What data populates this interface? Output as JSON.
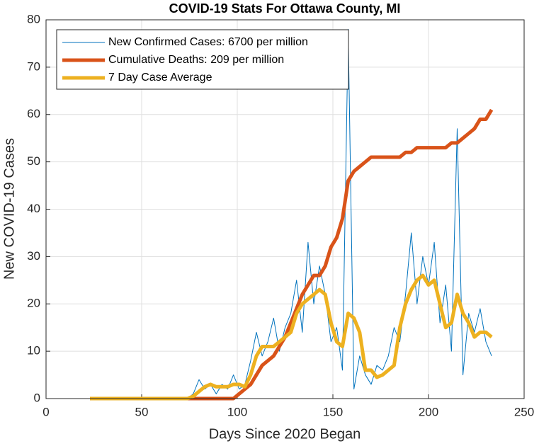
{
  "chart_data": {
    "type": "line",
    "title": "COVID-19 Stats For Ottawa County, MI",
    "xlabel": "Days Since 2020 Began",
    "ylabel": "New COVID-19 Cases",
    "x": [
      23,
      26,
      29,
      32,
      35,
      38,
      41,
      44,
      47,
      50,
      53,
      56,
      59,
      62,
      65,
      68,
      71,
      74,
      77,
      80,
      83,
      86,
      89,
      92,
      95,
      98,
      101,
      104,
      107,
      110,
      113,
      116,
      119,
      122,
      125,
      128,
      131,
      134,
      137,
      140,
      143,
      146,
      149,
      152,
      155,
      158,
      161,
      164,
      167,
      170,
      173,
      176,
      179,
      182,
      185,
      188,
      191,
      194,
      197,
      200,
      203,
      206,
      209,
      212,
      215,
      218,
      221,
      224,
      227,
      230,
      233
    ],
    "series": [
      {
        "name": "New Confirmed Cases: 6700 per million",
        "color": "#0072bd",
        "width": 1,
        "values": [
          0,
          0,
          0,
          0,
          0,
          0,
          0,
          0,
          0,
          0,
          0,
          0,
          0,
          0,
          0,
          0,
          0,
          0,
          1,
          4,
          2,
          3,
          1,
          3,
          2,
          5,
          2,
          3,
          8,
          14,
          9,
          12,
          17,
          10,
          15,
          18,
          25,
          14,
          33,
          20,
          28,
          22,
          12,
          15,
          6,
          78,
          2,
          9,
          5,
          3,
          7,
          6,
          9,
          15,
          12,
          22,
          35,
          20,
          30,
          24,
          33,
          16,
          24,
          10,
          57,
          5,
          18,
          14,
          19,
          12,
          9
        ]
      },
      {
        "name": "Cumulative Deaths: 209 per million",
        "color": "#d95319",
        "width": 5,
        "values": [
          0,
          0,
          0,
          0,
          0,
          0,
          0,
          0,
          0,
          0,
          0,
          0,
          0,
          0,
          0,
          0,
          0,
          0,
          0,
          0,
          0,
          0,
          0,
          0,
          0,
          0,
          1,
          2,
          3,
          5,
          7,
          8,
          9,
          11,
          13,
          16,
          19,
          22,
          24,
          26,
          26,
          28,
          32,
          34,
          38,
          46,
          48,
          49,
          50,
          51,
          51,
          51,
          51,
          51,
          51,
          52,
          52,
          53,
          53,
          53,
          53,
          53,
          53,
          54,
          54,
          55,
          56,
          57,
          59,
          59,
          61
        ]
      },
      {
        "name": "7 Day Case Average",
        "color": "#edb120",
        "width": 5,
        "values": [
          0,
          0,
          0,
          0,
          0,
          0,
          0,
          0,
          0,
          0,
          0,
          0,
          0,
          0,
          0,
          0,
          0,
          0,
          0.5,
          1.5,
          2.5,
          3,
          2.5,
          2.5,
          2.5,
          3,
          3,
          2.5,
          5,
          9,
          11,
          11,
          11,
          12,
          13,
          14,
          18,
          20,
          21,
          22,
          23,
          22,
          16,
          12,
          11,
          18,
          17,
          14,
          6,
          6,
          4.5,
          5,
          6,
          7,
          15,
          20,
          23,
          25,
          26,
          24,
          25,
          20,
          15,
          16,
          22,
          18,
          16,
          13,
          14,
          14,
          13
        ]
      }
    ],
    "xlim": [
      0,
      250
    ],
    "xticks": [
      0,
      50,
      100,
      150,
      200,
      250
    ],
    "ylim": [
      0,
      80
    ],
    "yticks": [
      0,
      10,
      20,
      30,
      40,
      50,
      60,
      70,
      80
    ],
    "grid": true,
    "legend": "top-left"
  }
}
